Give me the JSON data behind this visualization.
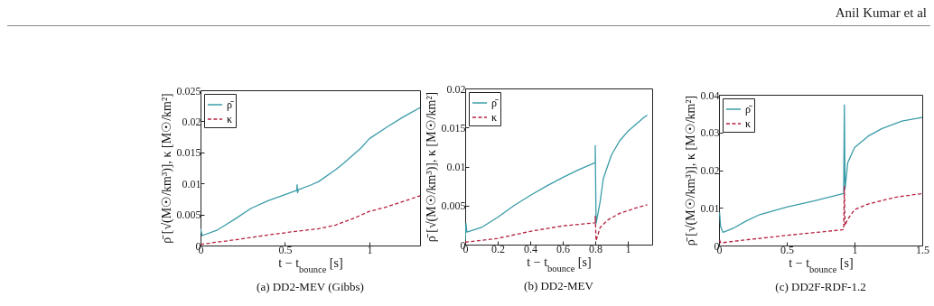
{
  "chart_data": [
    {
      "type": "line",
      "title": "(a)  DD2-MEV (Gibbs)",
      "annotations": [
        "Anil Kumar et al"
      ],
      "xlabel": "t − t$_{bounce}$ [s]",
      "ylabel": "ρ̄ [√(M☉/km³)], κ [M☉/km²]",
      "xlim": [
        0,
        1.3
      ],
      "xticks": [
        0,
        0.5,
        1
      ],
      "ylim": [
        0,
        0.025
      ],
      "yticks": [
        0,
        0.005,
        0.01,
        0.015,
        0.02,
        0.025
      ],
      "legend": "top left",
      "grid": false,
      "series": [
        {
          "name": "ρ̄",
          "color": "#3a9ca8",
          "line_style": "solid",
          "x": [
            0,
            0.01,
            0.1,
            0.2,
            0.3,
            0.4,
            0.5,
            0.57,
            0.572,
            0.575,
            0.58,
            0.65,
            0.7,
            0.8,
            0.85,
            0.95,
            1.0,
            1.1,
            1.2,
            1.3
          ],
          "values": [
            0.0027,
            0.0016,
            0.0025,
            0.0042,
            0.006,
            0.0072,
            0.0082,
            0.0089,
            0.0098,
            0.0085,
            0.009,
            0.0097,
            0.0103,
            0.0122,
            0.0133,
            0.0157,
            0.0172,
            0.019,
            0.0207,
            0.0222
          ]
        },
        {
          "name": "κ",
          "color": "#b5213f",
          "line_style": "dashed",
          "x": [
            0,
            0.2,
            0.4,
            0.57,
            0.7,
            0.8,
            0.9,
            1.0,
            1.1,
            1.2,
            1.3
          ],
          "values": [
            0.0002,
            0.0009,
            0.0017,
            0.0023,
            0.0027,
            0.0033,
            0.0043,
            0.0055,
            0.0062,
            0.0071,
            0.008
          ]
        }
      ]
    },
    {
      "type": "line",
      "title": "(b)  DD2-MEV",
      "xlabel": "t − t$_{bounce}$ [s]",
      "ylabel": "ρ̄ [√(M☉/km³)], κ [M☉/km²]",
      "xlim": [
        0,
        1.15
      ],
      "xticks": [
        0,
        0.2,
        0.4,
        0.6,
        0.8,
        1
      ],
      "ylim": [
        0,
        0.02
      ],
      "yticks": [
        0,
        0.005,
        0.01,
        0.015,
        0.02
      ],
      "legend": "top left",
      "grid": false,
      "series": [
        {
          "name": "ρ̄",
          "color": "#3a9ca8",
          "line_style": "solid",
          "x": [
            0,
            0.005,
            0.01,
            0.1,
            0.2,
            0.3,
            0.4,
            0.5,
            0.6,
            0.7,
            0.8,
            0.8,
            0.805,
            0.83,
            0.85,
            0.9,
            0.95,
            1.0,
            1.1,
            1.12
          ],
          "values": [
            0.0005,
            0.0027,
            0.0016,
            0.0022,
            0.0035,
            0.005,
            0.0063,
            0.0075,
            0.0086,
            0.0096,
            0.0105,
            0.0127,
            0.0027,
            0.0055,
            0.0085,
            0.0115,
            0.0133,
            0.0145,
            0.0163,
            0.0166
          ]
        },
        {
          "name": "κ",
          "color": "#b5213f",
          "line_style": "dashed",
          "x": [
            0,
            0.2,
            0.4,
            0.6,
            0.8,
            0.8,
            0.805,
            0.83,
            0.88,
            0.95,
            1.05,
            1.12
          ],
          "values": [
            0.0003,
            0.0008,
            0.0017,
            0.0024,
            0.0028,
            0.0037,
            0.0005,
            0.0022,
            0.0032,
            0.004,
            0.0047,
            0.0051
          ]
        }
      ]
    },
    {
      "type": "line",
      "title": "(c)  DD2F-RDF-1.2",
      "xlabel": "t − t$_{bounce}$ [s]",
      "ylabel": "ρ̄ [√(M☉/km³)], κ [M☉/km²]",
      "xlim": [
        0,
        1.5
      ],
      "xticks": [
        0,
        0.5,
        1,
        1.5
      ],
      "ylim": [
        0,
        0.04
      ],
      "yticks": [
        0,
        0.01,
        0.02,
        0.03,
        0.04
      ],
      "legend": "top left",
      "grid": false,
      "series": [
        {
          "name": "ρ̄",
          "color": "#3a9ca8",
          "line_style": "solid",
          "x": [
            0.004,
            0.012,
            0.03,
            0.1,
            0.2,
            0.3,
            0.5,
            0.7,
            0.92,
            0.925,
            0.93,
            0.95,
            1.0,
            1.1,
            1.2,
            1.35,
            1.5
          ],
          "values": [
            0.0088,
            0.005,
            0.0035,
            0.0045,
            0.0065,
            0.0082,
            0.0102,
            0.0118,
            0.0138,
            0.0373,
            0.015,
            0.022,
            0.026,
            0.029,
            0.031,
            0.033,
            0.034
          ]
        },
        {
          "name": "κ",
          "color": "#b5213f",
          "line_style": "dashed",
          "x": [
            0.004,
            0.012,
            0.2,
            0.5,
            0.92,
            0.925,
            0.93,
            0.95,
            1.0,
            1.1,
            1.3,
            1.5
          ],
          "values": [
            0.0015,
            0.0007,
            0.0015,
            0.0027,
            0.0042,
            0.0157,
            0.0053,
            0.007,
            0.0095,
            0.011,
            0.0128,
            0.0138
          ]
        }
      ]
    }
  ]
}
